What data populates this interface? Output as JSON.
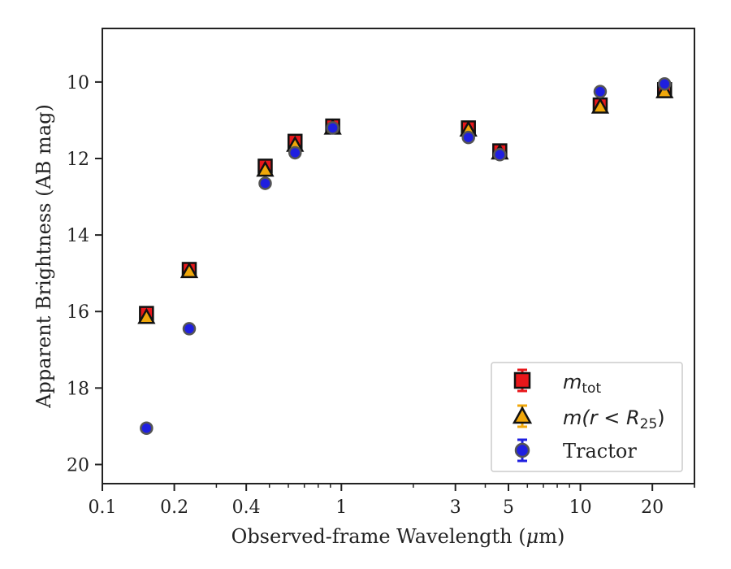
{
  "chart_data": {
    "type": "scatter",
    "xlabel_text": "Observed-frame Wavelength (",
    "xlabel_mu": "μ",
    "xlabel_unit": "m)",
    "ylabel": "Apparent Brightness (AB mag)",
    "x_scale": "log",
    "xlim": [
      0.1,
      30
    ],
    "ylim": [
      20.5,
      8.6
    ],
    "y_inverted": true,
    "x_ticks": [
      0.1,
      0.2,
      0.4,
      1,
      3,
      5,
      10,
      20
    ],
    "x_tick_labels": [
      "0.1",
      "0.2",
      "0.4",
      "1",
      "3",
      "5",
      "10",
      "20"
    ],
    "y_ticks": [
      10,
      12,
      14,
      16,
      18,
      20
    ],
    "y_tick_labels": [
      "10",
      "12",
      "14",
      "16",
      "18",
      "20"
    ],
    "grid": false,
    "legend_position": "lower-right",
    "series": [
      {
        "name": "m_tot",
        "marker": "square",
        "color": "#e8171b",
        "x": [
          0.153,
          0.231,
          0.48,
          0.64,
          0.92,
          3.4,
          4.6,
          12.1,
          22.5
        ],
        "y": [
          16.05,
          14.9,
          12.2,
          11.55,
          11.15,
          11.2,
          11.8,
          10.6,
          10.2
        ]
      },
      {
        "name": "m(r<R25)",
        "marker": "triangle",
        "color": "#f0a70a",
        "x": [
          0.153,
          0.231,
          0.48,
          0.64,
          0.92,
          3.4,
          4.6,
          12.1,
          22.5
        ],
        "y": [
          16.15,
          14.95,
          12.3,
          11.65,
          11.2,
          11.25,
          11.85,
          10.65,
          10.25
        ]
      },
      {
        "name": "Tractor",
        "marker": "circle",
        "color": "#1f1fe0",
        "x": [
          0.153,
          0.231,
          0.48,
          0.64,
          0.92,
          3.4,
          4.6,
          12.1,
          22.5
        ],
        "y": [
          19.05,
          16.45,
          12.65,
          11.85,
          11.2,
          11.45,
          11.9,
          10.25,
          10.05
        ]
      }
    ]
  },
  "legend": {
    "mtot_main": "m",
    "mtot_sub": "tot",
    "mr_main": "m(r < R",
    "mr_sub": "25",
    "mr_close": ")",
    "tractor": "Tractor"
  }
}
